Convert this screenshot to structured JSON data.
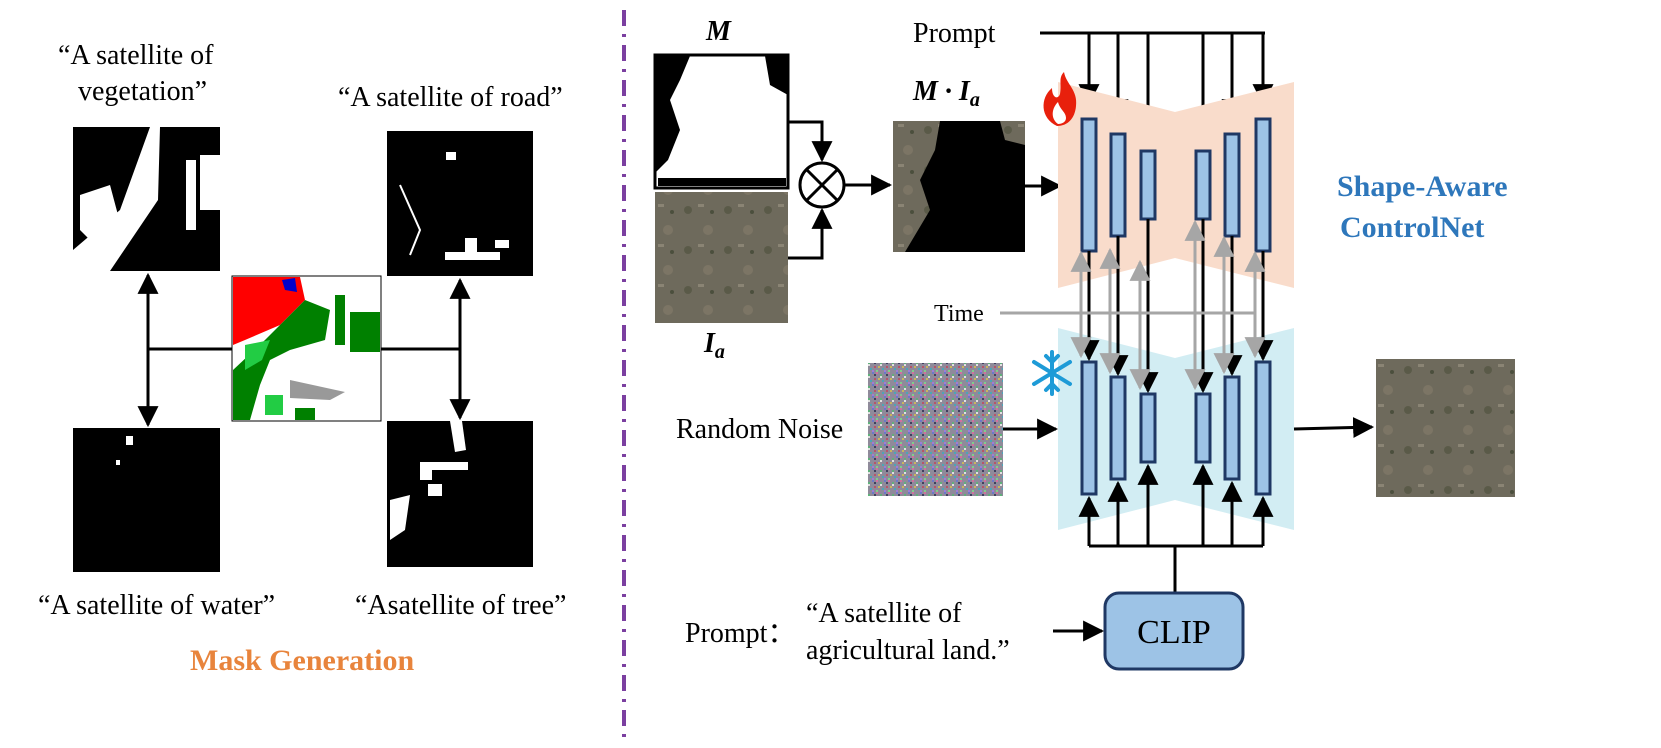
{
  "left": {
    "prompt_vegetation_1": "“A satellite  of",
    "prompt_vegetation_2": "vegetation”",
    "prompt_road": "“A satellite of road”",
    "prompt_water": "“A satellite of water”",
    "prompt_tree": "“Asatellite of tree”",
    "section_title": "Mask Generation"
  },
  "right": {
    "mask_label": "M",
    "masked_label_m": "M",
    "masked_label_dot": " · ",
    "masked_label_i": "I",
    "masked_label_sub": "a",
    "image_label": "I",
    "image_label_sub": "a",
    "prompt_top": "Prompt",
    "time_label": "Time",
    "noise_label": "Random Noise",
    "prompt_bottom": "Prompt：",
    "prompt_text_1": "“A satellite of",
    "prompt_text_2": "agricultural land.”",
    "clip_label": "CLIP",
    "controlnet_title_1": "Shape-Aware",
    "controlnet_title_2": "ControlNet"
  },
  "colors": {
    "divider": "#7B3FA0",
    "controlnet_bg": "#F9DCCB",
    "frozen_bg": "#D2EDF3",
    "block_fill": "#9DC3E6",
    "block_stroke": "#1F3864",
    "clip_fill": "#9DC3E6",
    "title_orange": "#E8843C",
    "title_blue": "#2E77BB",
    "time_line": "#A6A6A6"
  },
  "icons": [
    "fire-icon",
    "snowflake-icon",
    "multiply-icon"
  ]
}
